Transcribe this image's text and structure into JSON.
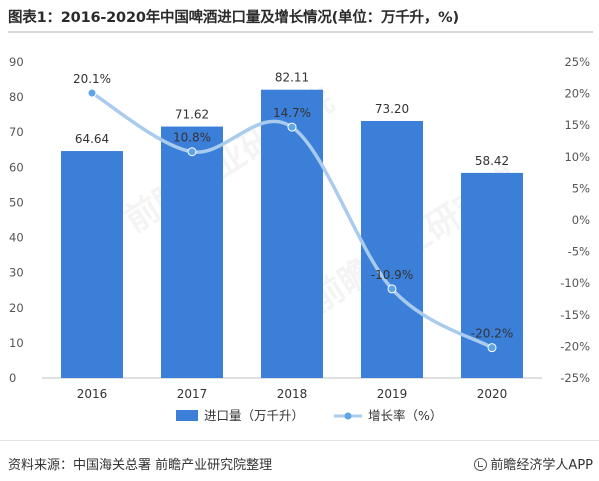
{
  "title": "图表1：2016-2020年中国啤酒进口量及增长情况(单位：万千升，%)",
  "source": "资料来源：中国海关总署 前瞻产业研究院整理",
  "brand": "前瞻经济学人APP",
  "watermark": "前瞻产业研究院",
  "colors": {
    "bar": "#3c7fd9",
    "line": "#a9cbee",
    "point": "#5ea4e6"
  },
  "chart_data": {
    "type": "bar",
    "categories": [
      "2016",
      "2017",
      "2018",
      "2019",
      "2020"
    ],
    "series": [
      {
        "name": "进口量（万千升）",
        "type": "bar",
        "axis": "left",
        "values": [
          64.64,
          71.62,
          82.11,
          73.2,
          58.42
        ],
        "labels": [
          "64.64",
          "71.62",
          "82.11",
          "73.20",
          "58.42"
        ]
      },
      {
        "name": "增长率（%）",
        "type": "line",
        "axis": "right",
        "values": [
          20.1,
          10.8,
          14.7,
          -10.9,
          -20.2
        ],
        "labels": [
          "20.1%",
          "10.8%",
          "14.7%",
          "-10.9%",
          "-20.2%"
        ]
      }
    ],
    "y_left": {
      "min": 0,
      "max": 90,
      "ticks": [
        "0",
        "10",
        "20",
        "30",
        "40",
        "50",
        "60",
        "70",
        "80",
        "90"
      ]
    },
    "y_right": {
      "min": -25,
      "max": 25,
      "ticks": [
        "-25%",
        "-20%",
        "-15%",
        "-10%",
        "-5%",
        "0%",
        "5%",
        "10%",
        "15%",
        "20%",
        "25%"
      ]
    },
    "grid": false,
    "legend_position": "bottom"
  }
}
